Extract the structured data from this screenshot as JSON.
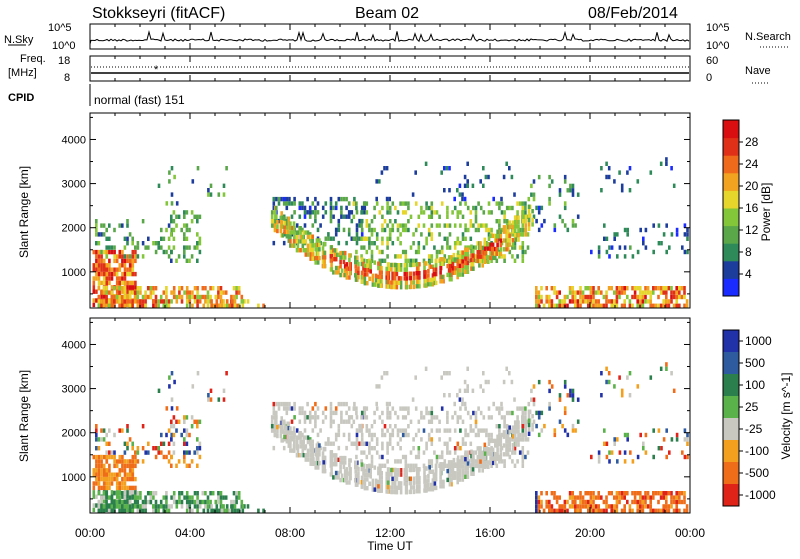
{
  "header": {
    "station": "Stokkseyri (fitACF)",
    "beam": "Beam 02",
    "date": "08/Feb/2014"
  },
  "nsky_panel": {
    "left_label": "N.Sky",
    "right_label": "N.Search",
    "left_ticks": [
      "10^5",
      "10^0"
    ],
    "right_ticks": [
      "10^5",
      "10^0"
    ]
  },
  "freq_panel": {
    "left_label_1": "Freq.",
    "left_label_2": "[MHz]",
    "right_label": "Nave",
    "left_ticks": [
      "18",
      "8"
    ],
    "right_ticks": [
      "60",
      "0"
    ]
  },
  "cpid_panel": {
    "label": "CPID",
    "mode": "normal (fast) 151"
  },
  "colors": {
    "power": [
      "#1a2bff",
      "#1d3d9c",
      "#2f8a5a",
      "#5aa74a",
      "#83c63a",
      "#e6d52a",
      "#f2a31f",
      "#f06a1b",
      "#e03017",
      "#d80e10"
    ],
    "velocity": [
      "#2131a8",
      "#2e5aa0",
      "#2b7f4c",
      "#5ab24a",
      "#c8c8c0",
      "#f2a01e",
      "#ef6c18",
      "#e02318"
    ]
  },
  "chart_data": [
    {
      "type": "heatmap",
      "name": "power",
      "ylabel": "Slant Range [km]",
      "y_ticks": [
        "1000",
        "2000",
        "3000",
        "4000"
      ],
      "ylim": [
        180,
        4600
      ],
      "xlim_hours": [
        0,
        24
      ],
      "colorbar": {
        "label": "Power [dB]",
        "ticks": [
          "4",
          "8",
          "12",
          "16",
          "20",
          "24",
          "28"
        ],
        "range": [
          0,
          32
        ]
      }
    },
    {
      "type": "heatmap",
      "name": "velocity",
      "ylabel": "Slant Range [km]",
      "y_ticks": [
        "1000",
        "2000",
        "3000",
        "4000"
      ],
      "ylim": [
        180,
        4600
      ],
      "xlim_hours": [
        0,
        24
      ],
      "xlabel": "Time UT",
      "x_ticks": [
        "00:00",
        "04:00",
        "08:00",
        "12:00",
        "16:00",
        "20:00",
        "00:00"
      ],
      "colorbar": {
        "label": "Velocity [m s^-1]",
        "ticks": [
          "1000",
          "500",
          "100",
          "25",
          "-25",
          "-100",
          "-500",
          "-1000"
        ]
      }
    }
  ]
}
